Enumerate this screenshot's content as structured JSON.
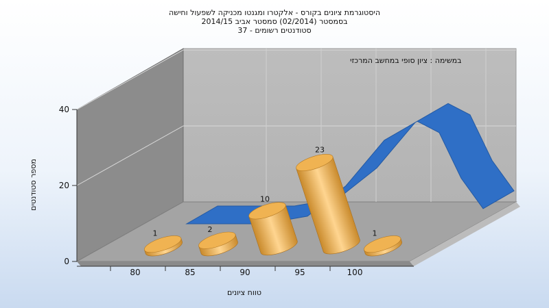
{
  "title_lines": [
    "היסטוגרמת ציונים בקורס - אלקטרו ומגנטו מכניקה לשפעול וחישה",
    "בסמסטר  (02/2014)  סמסטר אביב 2014/15",
    "סטודנטים רשומים - 37"
  ],
  "chart_data": {
    "type": "bar",
    "title": "היסטוגרמת ציונים בקורס - אלקטרו ומגנטו מכניקה לשפעול וחישה",
    "annotation": "במשימה : ציון סופי במחשב המרכזי",
    "xlabel": "טווח ציונים",
    "ylabel": "מספר סטודנטים",
    "categories": [
      "80",
      "85",
      "90",
      "95",
      "100"
    ],
    "values": [
      1,
      2,
      10,
      23,
      1
    ],
    "yticks": [
      "0",
      "20",
      "40"
    ],
    "ylim": [
      0,
      40
    ],
    "bar_color": "#e8a645",
    "curve_color": "#2f6fc6",
    "curve": [
      [
        79,
        0
      ],
      [
        86,
        0
      ],
      [
        90,
        2
      ],
      [
        93.5,
        10
      ],
      [
        97,
        22
      ],
      [
        100,
        27
      ],
      [
        102,
        24
      ],
      [
        104,
        12
      ],
      [
        106,
        4
      ]
    ]
  }
}
